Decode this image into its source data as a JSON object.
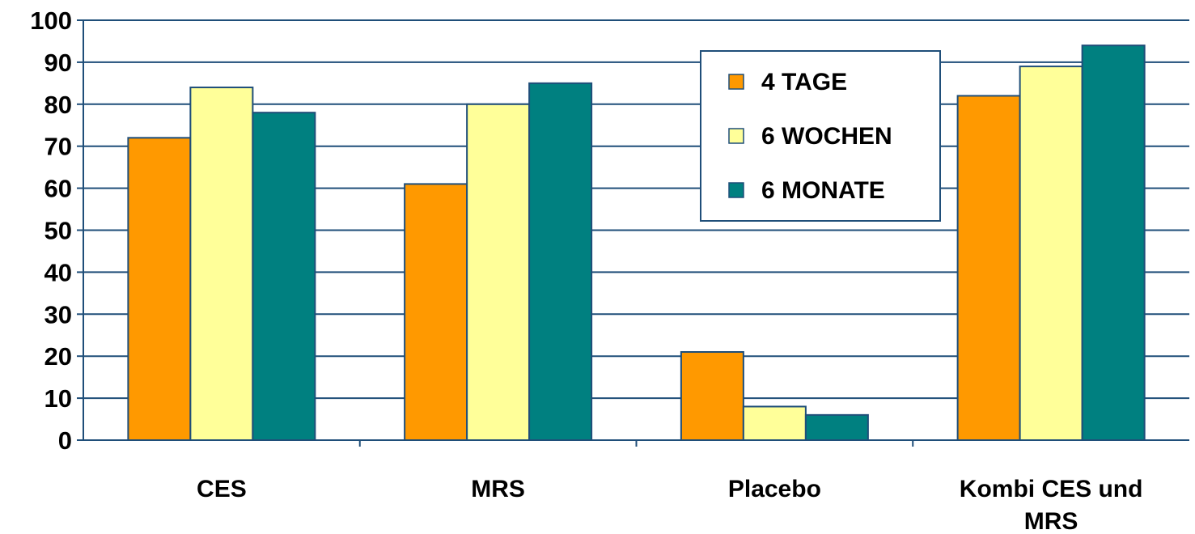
{
  "chart_data": {
    "type": "bar",
    "categories": [
      "CES",
      "MRS",
      "Placebo",
      "Kombi CES und MRS"
    ],
    "category_label_lines": [
      [
        "CES"
      ],
      [
        "MRS"
      ],
      [
        "Placebo"
      ],
      [
        "Kombi CES und",
        "MRS"
      ]
    ],
    "series": [
      {
        "name": "4 TAGE",
        "color": "#FF9900",
        "values": [
          72,
          61,
          21,
          82
        ]
      },
      {
        "name": "6 WOCHEN",
        "color": "#FFFF99",
        "values": [
          84,
          80,
          8,
          89
        ]
      },
      {
        "name": "6 MONATE",
        "color": "#008080",
        "values": [
          78,
          85,
          6,
          94
        ]
      }
    ],
    "yticks": [
      "0",
      "10",
      "20",
      "30",
      "40",
      "50",
      "60",
      "70",
      "80",
      "90",
      "100"
    ],
    "ylim": [
      0,
      100
    ],
    "grid": true,
    "legend_position": "top-center-right",
    "colors": {
      "axis": "#1F4E79",
      "bar_outline": "#1F4E79"
    }
  }
}
